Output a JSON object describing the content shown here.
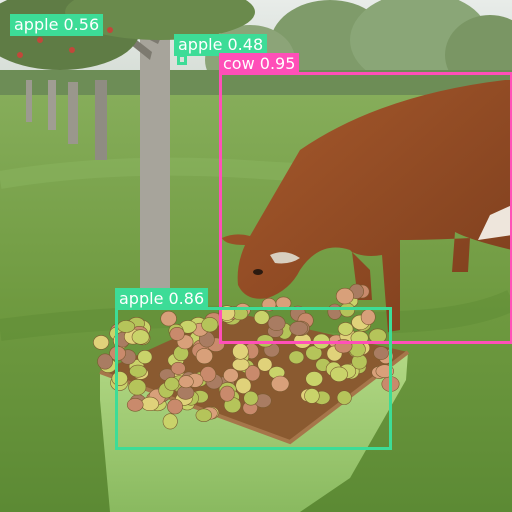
{
  "detections": [
    {
      "label": "apple 0.56",
      "color": "#3ddc97"
    },
    {
      "label": "apple 0.48",
      "color": "#3ddc97"
    },
    {
      "label": "cow 0.95",
      "color": "#ff4fb8"
    },
    {
      "label": "apple 0.86",
      "color": "#3ddc97"
    }
  ]
}
